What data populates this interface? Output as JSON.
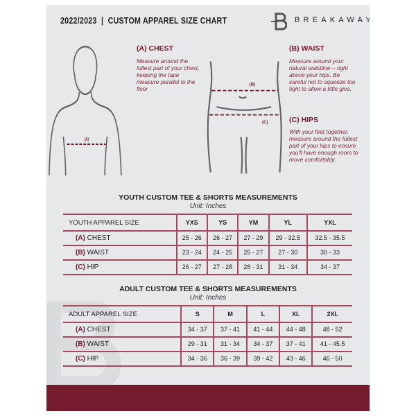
{
  "header": {
    "title": "2022/2023  |  CUSTOM APPAREL SIZE CHART",
    "brand": "BREAKAWAY"
  },
  "guide": {
    "chest": {
      "heading": "(A) CHEST",
      "text": "Measure around the fullest part of your chest, keeping the tape measure parallel to the floor",
      "marker": "(A)"
    },
    "waist": {
      "heading": "(B) WAIST",
      "text": "Measure around your natural waistline – right above your hips. Be careful not to squeeze too tight to allow a little give.",
      "marker": "(B)"
    },
    "hips": {
      "heading": "(C) HIPS",
      "text": "With your feet together, measure around the fullest part of your hips to ensure you'll have enough room to move comfortably.",
      "marker": "(C)"
    }
  },
  "youth": {
    "title": "YOUTH CUSTOM TEE & SHORTS MEASUREMENTS",
    "unit": "Unit: Inches",
    "header": [
      "YOUTH APPAREL SIZE",
      "YXS",
      "YS",
      "YM",
      "YL",
      "YXL"
    ],
    "rows": [
      {
        "tag": "(A)",
        "name": "CHEST",
        "values": [
          "25 - 26",
          "26 - 27",
          "27 - 29",
          "29 - 32.5",
          "32.5 - 35.5"
        ]
      },
      {
        "tag": "(B)",
        "name": "WAIST",
        "values": [
          "23 - 24",
          "24 - 25",
          "25 - 27",
          "27 - 30",
          "30 - 33"
        ]
      },
      {
        "tag": "(C)",
        "name": "HIP",
        "values": [
          "26 - 27",
          "27 - 28",
          "28 - 31",
          "31 - 34",
          "34 - 37"
        ]
      }
    ]
  },
  "adult": {
    "title": "ADULT CUSTOM TEE & SHORTS MEASUREMENTS",
    "unit": "Unit: Inches",
    "header": [
      "ADULT APPAREL SIZE",
      "S",
      "M",
      "L",
      "XL",
      "2XL"
    ],
    "rows": [
      {
        "tag": "(A)",
        "name": "CHEST",
        "values": [
          "34 - 37",
          "37 - 41",
          "41 - 44",
          "44 - 48",
          "48 - 52"
        ]
      },
      {
        "tag": "(B)",
        "name": "WAIST",
        "values": [
          "29 - 31",
          "31 - 34",
          "34 - 37",
          "37 - 41",
          "41 - 45.5"
        ]
      },
      {
        "tag": "(C)",
        "name": "HIP",
        "values": [
          "34 - 36",
          "36 - 39",
          "39 - 42",
          "43 - 46",
          "46 - 50"
        ]
      }
    ]
  },
  "colors": {
    "accent": "#741b30",
    "panel": "#e7e8ea"
  }
}
